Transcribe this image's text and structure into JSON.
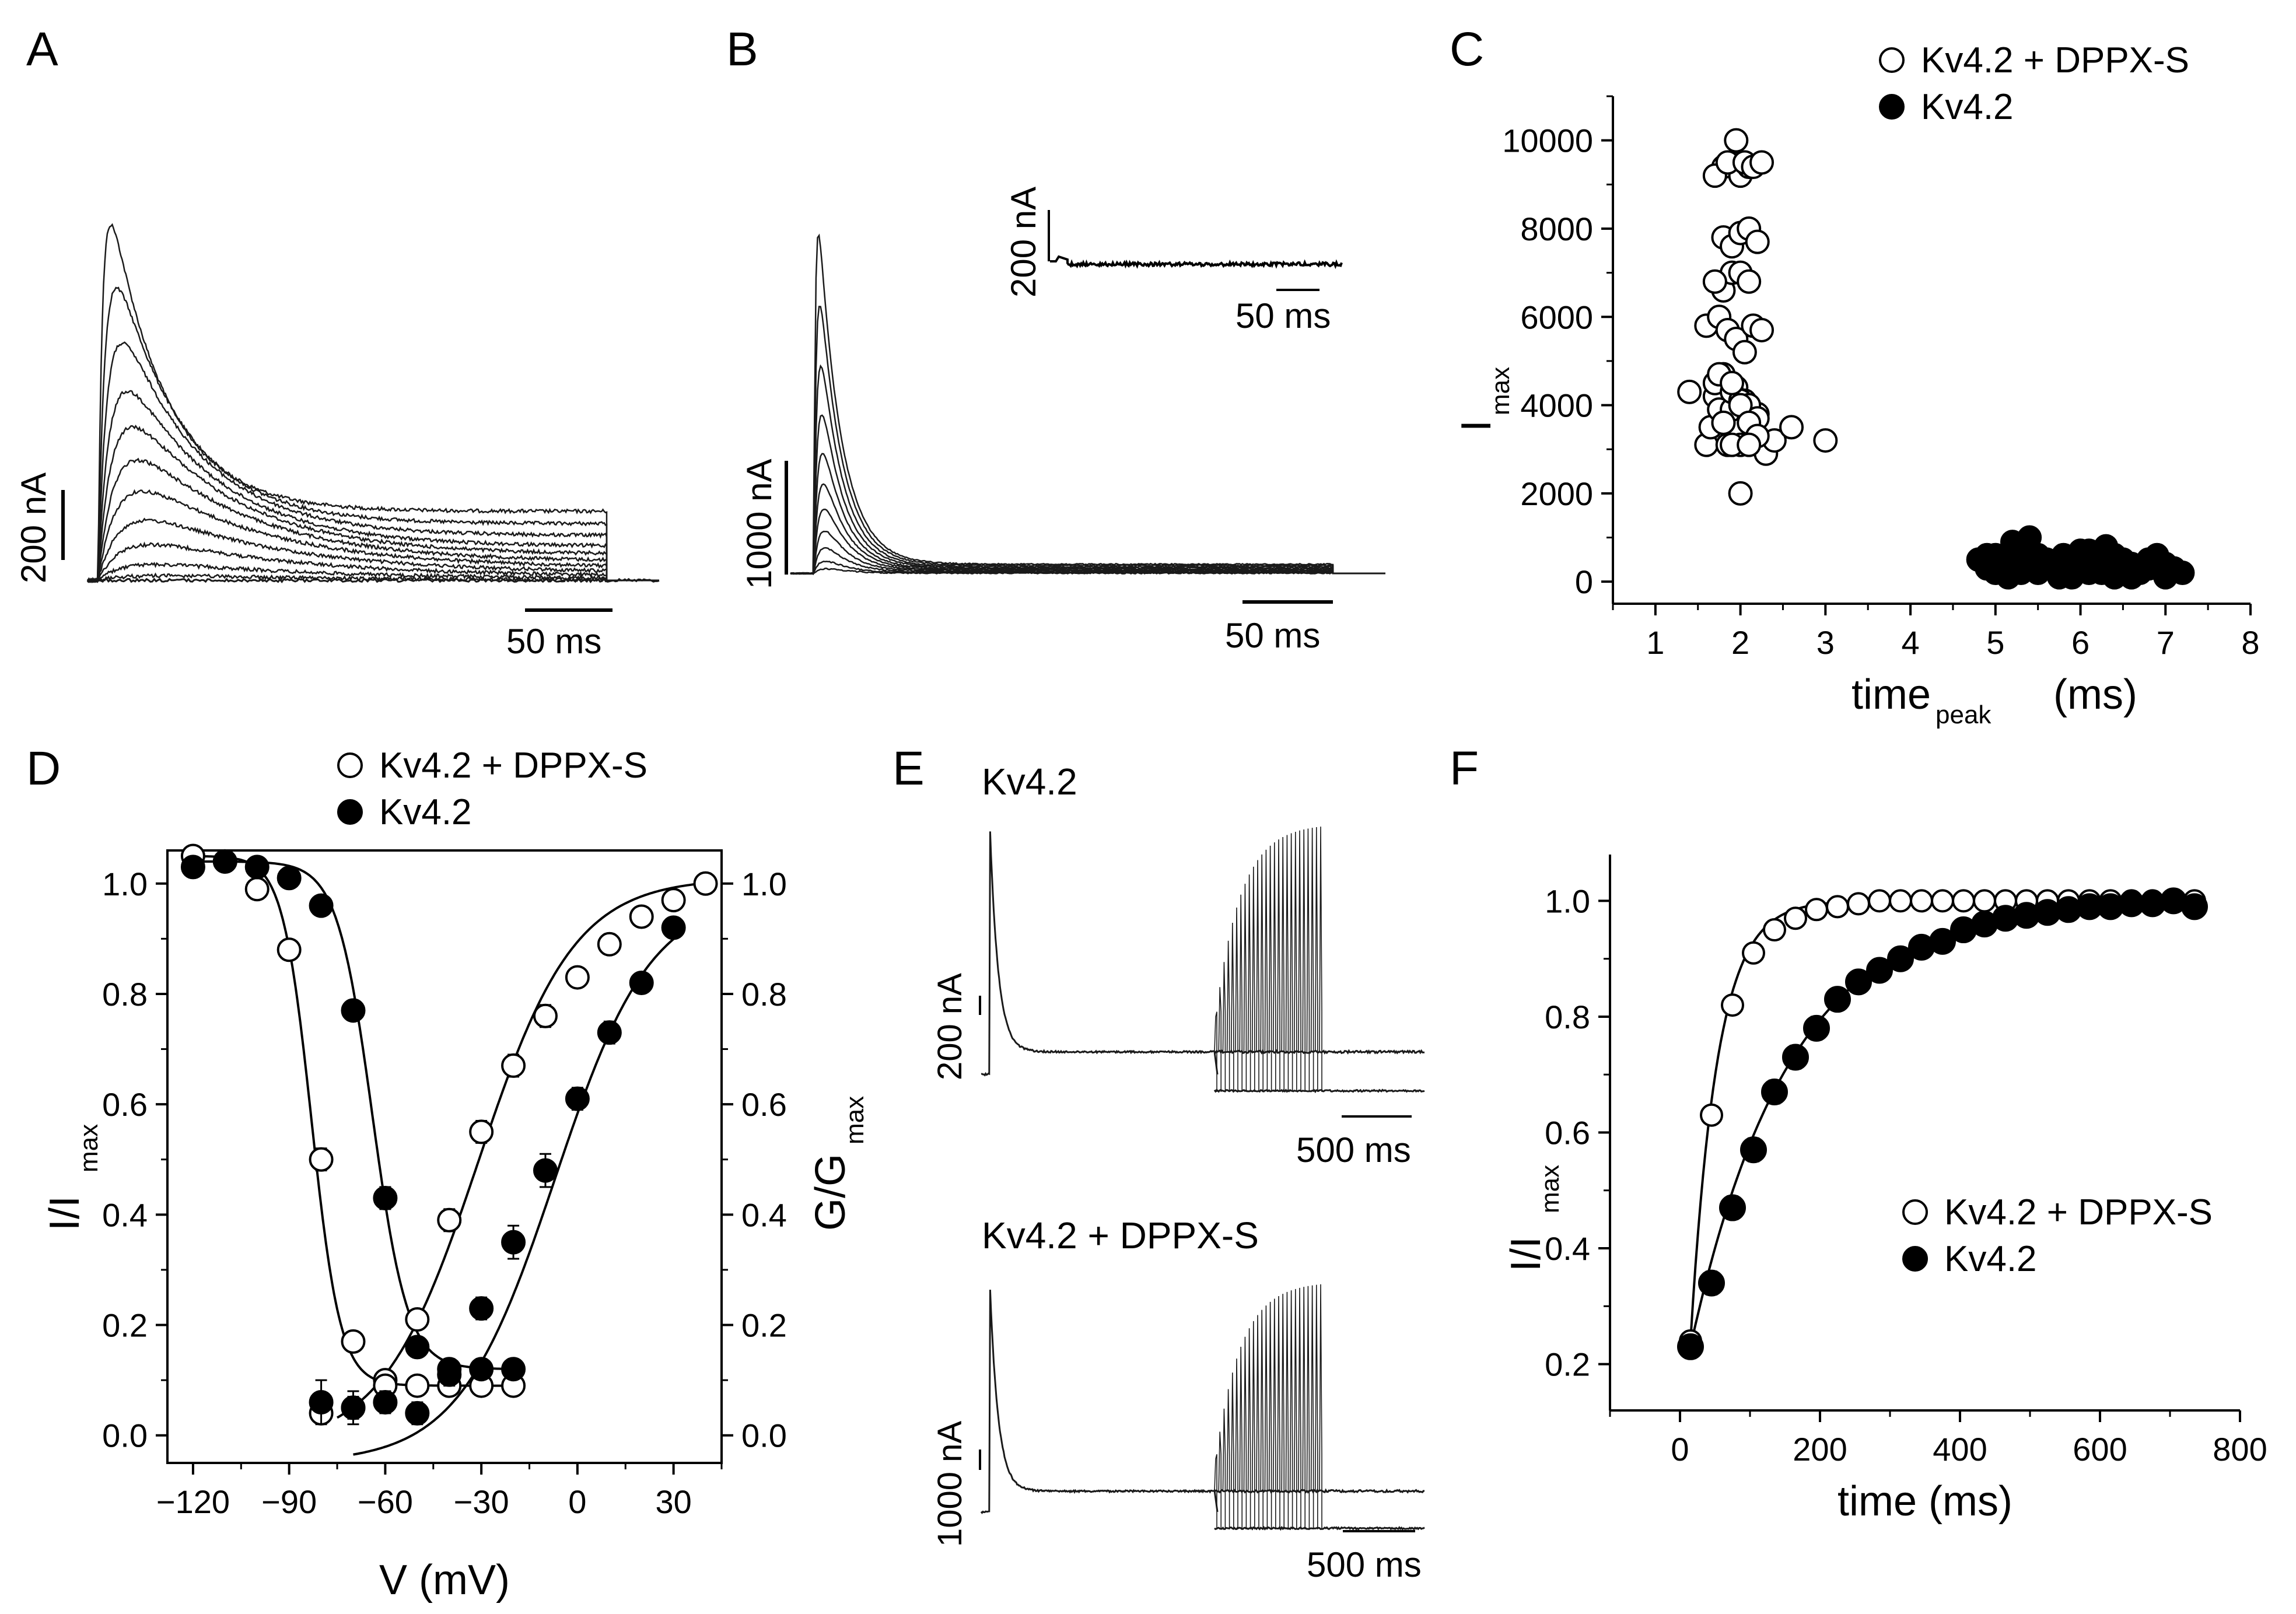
{
  "colors": {
    "ink": "#000000",
    "paper": "#ffffff",
    "trace": "#1a1a1a"
  },
  "panels": {
    "A": {
      "letter": "A",
      "scale_current": "200 nA",
      "scale_time": "50 ms"
    },
    "B": {
      "letter": "B",
      "scale_current": "1000 nA",
      "scale_time": "50 ms",
      "inset_current": "200 nA",
      "inset_time": "50 ms"
    },
    "C": {
      "letter": "C"
    },
    "D": {
      "letter": "D"
    },
    "E": {
      "letter": "E",
      "top_title": "Kv4.2",
      "top_scale_current": "200 nA",
      "top_scale_time": "500 ms",
      "bottom_title": "Kv4.2 + DPPX-S",
      "bottom_scale_current": "1000 nA",
      "bottom_scale_time": "500 ms"
    },
    "F": {
      "letter": "F"
    }
  },
  "chart_data": [
    {
      "panel": "C",
      "type": "scatter",
      "xlabel_main": "time",
      "xlabel_sub": "peak",
      "xlabel_unit": "(ms)",
      "ylabel_main": "I",
      "ylabel_sub": "max",
      "xlim": [
        0.5,
        8
      ],
      "ylim": [
        -500,
        11000
      ],
      "xticks": [
        1,
        2,
        3,
        4,
        5,
        6,
        7,
        8
      ],
      "yticks": [
        0,
        2000,
        4000,
        6000,
        8000,
        10000
      ],
      "legend_position": "top-right",
      "series": [
        {
          "name": "Kv4.2 + DPPX-S",
          "marker": "open-circle",
          "x": [
            1.4,
            1.6,
            1.65,
            1.7,
            1.75,
            1.8,
            1.85,
            1.9,
            1.95,
            2.0,
            2.05,
            2.1,
            2.15,
            2.2,
            2.3,
            2.4,
            2.6,
            3.0,
            1.7,
            1.8,
            1.9,
            2.0,
            2.1,
            2.2,
            1.6,
            1.75,
            1.85,
            1.95,
            2.05,
            2.15,
            2.25,
            1.8,
            1.9,
            2.0,
            2.1,
            1.7,
            1.8,
            1.9,
            2.0,
            2.1,
            2.2,
            1.8,
            1.9,
            2.0,
            2.1,
            1.7,
            1.85,
            1.95,
            2.05,
            2.15,
            2.25,
            1.75,
            1.9,
            2.0,
            2.1,
            2.2,
            1.8,
            2.0,
            1.9,
            2.1
          ],
          "y": [
            4300,
            3100,
            3500,
            4200,
            3900,
            3600,
            3100,
            3900,
            4400,
            3100,
            4100,
            3700,
            3800,
            3800,
            2900,
            3200,
            3500,
            3200,
            4500,
            4700,
            4300,
            4100,
            4000,
            3700,
            5800,
            6000,
            5700,
            5500,
            5200,
            5800,
            5700,
            6600,
            7000,
            7000,
            6800,
            6800,
            7800,
            7600,
            7900,
            8000,
            7700,
            9400,
            9500,
            9200,
            9400,
            9200,
            9500,
            10000,
            9500,
            9400,
            9500,
            4700,
            4500,
            4000,
            3600,
            3300,
            3600,
            2000,
            3100,
            3100
          ]
        },
        {
          "name": "Kv4.2",
          "marker": "filled-circle",
          "x": [
            4.8,
            4.9,
            5.0,
            5.1,
            5.15,
            5.2,
            5.3,
            5.35,
            5.4,
            5.5,
            5.55,
            5.6,
            5.7,
            5.75,
            5.8,
            5.9,
            5.95,
            6.0,
            6.05,
            6.1,
            6.2,
            6.25,
            6.3,
            6.4,
            6.45,
            6.5,
            6.6,
            6.7,
            6.8,
            6.9,
            7.0,
            7.1,
            7.2,
            5.0,
            5.3,
            5.6,
            5.9,
            6.2,
            6.5,
            6.8,
            5.2,
            5.5,
            5.8,
            6.1,
            6.4,
            6.7,
            7.0,
            4.9,
            5.45,
            6.0,
            6.35,
            6.6
          ],
          "y": [
            500,
            300,
            200,
            400,
            100,
            900,
            300,
            600,
            1000,
            200,
            400,
            500,
            300,
            100,
            600,
            200,
            400,
            500,
            300,
            700,
            400,
            200,
            800,
            100,
            300,
            500,
            400,
            200,
            300,
            600,
            100,
            300,
            200,
            600,
            200,
            400,
            100,
            300,
            200,
            500,
            800,
            600,
            400,
            200,
            600,
            300,
            400,
            600,
            300,
            700,
            200,
            100
          ]
        }
      ]
    },
    {
      "panel": "D",
      "type": "scatter",
      "xlabel": "V (mV)",
      "ylabel_left_main": "I/I",
      "ylabel_left_sub": "max",
      "ylabel_right_main": "G/G",
      "ylabel_right_sub": "max",
      "xlim": [
        -128,
        45
      ],
      "ylim": [
        -0.05,
        1.06
      ],
      "xticks": [
        -120,
        -90,
        -60,
        -30,
        0,
        30
      ],
      "yticks": [
        0.0,
        0.2,
        0.4,
        0.6,
        0.8,
        1.0
      ],
      "yticklabels": [
        "0.0",
        "0.2",
        "0.4",
        "0.6",
        "0.8",
        "1.0"
      ],
      "legend_position": "top-center",
      "series": [
        {
          "name": "Kv4.2 + DPPX-S",
          "marker": "open-circle",
          "kind": "inactivation",
          "x": [
            -120,
            -110,
            -100,
            -90,
            -80,
            -70,
            -60,
            -50,
            -40,
            -30,
            -20
          ],
          "y": [
            1.05,
            1.04,
            0.99,
            0.88,
            0.5,
            0.17,
            0.1,
            0.09,
            0.09,
            0.09,
            0.09
          ],
          "err": [
            0.01,
            0.01,
            0.01,
            0.01,
            0.02,
            0.01,
            0.01,
            0.01,
            0.01,
            0.01,
            0.01
          ]
        },
        {
          "marker": "open-circle",
          "kind": "activation",
          "x": [
            -80,
            -70,
            -60,
            -50,
            -40,
            -30,
            -20,
            -10,
            0,
            10,
            20,
            30,
            40
          ],
          "y": [
            0.04,
            0.05,
            0.09,
            0.21,
            0.39,
            0.55,
            0.67,
            0.76,
            0.83,
            0.89,
            0.94,
            0.97,
            1.0
          ],
          "err": [
            0.01,
            0.02,
            0.01,
            0.01,
            0.02,
            0.02,
            0.02,
            0.02,
            0.01,
            0.01,
            0.01,
            0.01,
            0.01
          ]
        },
        {
          "name": "Kv4.2",
          "marker": "filled-circle",
          "kind": "inactivation",
          "x": [
            -120,
            -110,
            -100,
            -90,
            -80,
            -70,
            -60,
            -50,
            -40,
            -30,
            -20
          ],
          "y": [
            1.03,
            1.04,
            1.03,
            1.01,
            0.96,
            0.77,
            0.43,
            0.16,
            0.12,
            0.12,
            0.12
          ],
          "err": [
            0.01,
            0.01,
            0.01,
            0.01,
            0.01,
            0.01,
            0.02,
            0.01,
            0.01,
            0.01,
            0.01
          ]
        },
        {
          "marker": "filled-circle",
          "kind": "activation",
          "x": [
            -80,
            -70,
            -60,
            -50,
            -40,
            -30,
            -20,
            -10,
            0,
            10,
            20,
            30
          ],
          "y": [
            0.06,
            0.05,
            0.06,
            0.04,
            0.11,
            0.23,
            0.35,
            0.48,
            0.61,
            0.73,
            0.82,
            0.92
          ],
          "err": [
            0.04,
            0.03,
            0.02,
            0.02,
            0.02,
            0.02,
            0.03,
            0.03,
            0.02,
            0.02,
            0.01,
            0.01
          ]
        }
      ]
    },
    {
      "panel": "F",
      "type": "scatter",
      "xlabel": "time (ms)",
      "ylabel_main": "I/I",
      "ylabel_sub": "max",
      "xlim": [
        -100,
        800
      ],
      "ylim": [
        0.12,
        1.08
      ],
      "xticks": [
        0,
        200,
        400,
        600,
        800
      ],
      "yticks": [
        0.2,
        0.4,
        0.6,
        0.8,
        1.0
      ],
      "yticklabels": [
        "0.2",
        "0.4",
        "0.6",
        "0.8",
        "1.0"
      ],
      "legend_position": "bottom-right",
      "series": [
        {
          "name": "Kv4.2 + DPPX-S",
          "marker": "open-circle",
          "x": [
            15,
            45,
            75,
            105,
            135,
            165,
            195,
            225,
            255,
            285,
            315,
            345,
            375,
            405,
            435,
            465,
            495,
            525,
            555,
            585,
            615,
            645,
            675,
            705,
            735
          ],
          "y": [
            0.24,
            0.63,
            0.82,
            0.91,
            0.95,
            0.97,
            0.985,
            0.99,
            0.995,
            1.0,
            1.0,
            1.0,
            1.0,
            1.0,
            1.0,
            1.0,
            1.0,
            1.0,
            1.0,
            1.0,
            1.0,
            1.0,
            1.0,
            1.0,
            1.0
          ]
        },
        {
          "name": "Kv4.2",
          "marker": "filled-circle",
          "x": [
            15,
            45,
            75,
            105,
            135,
            165,
            195,
            225,
            255,
            285,
            315,
            345,
            375,
            405,
            435,
            465,
            495,
            525,
            555,
            585,
            615,
            645,
            675,
            705,
            735
          ],
          "y": [
            0.23,
            0.34,
            0.47,
            0.57,
            0.67,
            0.73,
            0.78,
            0.83,
            0.86,
            0.88,
            0.9,
            0.92,
            0.93,
            0.95,
            0.96,
            0.97,
            0.975,
            0.98,
            0.985,
            0.99,
            0.99,
            0.995,
            0.995,
            1.0,
            0.99
          ],
          "err": [
            0.02,
            0.02,
            0.02,
            0.02,
            0.02,
            0.02,
            0.02,
            0.01,
            0.01,
            0.01,
            0.01,
            0.01,
            0.01,
            0.01,
            0.01,
            0.01,
            0.01,
            0.01,
            0.01,
            0.01,
            0.01,
            0.01,
            0.01,
            0.01,
            0.01
          ]
        }
      ]
    }
  ]
}
